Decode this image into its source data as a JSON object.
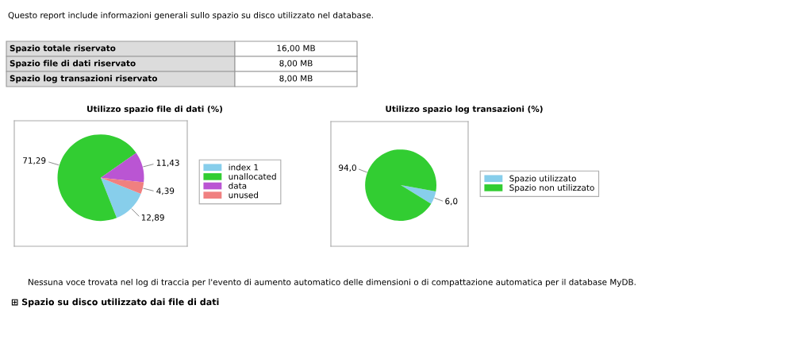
{
  "chart_data": [
    {
      "type": "other",
      "annotations": [
        "Questo report include informazioni generali sullo spazio su disco utilizzato nel database.",
        "Spazio totale riservato",
        "16,00 MB",
        "Spazio file di dati riservato",
        "8,00 MB",
        "Spazio log transazioni riservato",
        "8,00 MB",
        "Nessuna voce trovata nel log di traccia per l'evento di aumento automatico delle dimensioni o di compattazione automatica per il database MyDB.",
        "⊞ Spazio su disco utilizzato dai file di dati"
      ]
    },
    {
      "type": "pie",
      "title": "Utilizzo spazio file di dati (%)",
      "categories": [
        "index 1",
        "unallocated",
        "data",
        "unused"
      ],
      "values": [
        12.89,
        71.29,
        11.43,
        4.39
      ],
      "colors": [
        "#87ceeb",
        "#32cd32",
        "#ba55d3",
        "#f08080"
      ],
      "value_labels": [
        "12,89",
        "71,29",
        "11,43",
        "4,39"
      ],
      "legend": "right"
    },
    {
      "type": "pie",
      "title": "Utilizzo spazio log transazioni (%)",
      "categories": [
        "Spazio utilizzato",
        "Spazio non utilizzato"
      ],
      "values": [
        6.0,
        94.0
      ],
      "colors": [
        "#87ceeb",
        "#32cd32"
      ],
      "value_labels": [
        "6,0",
        "94,0"
      ],
      "legend": "right"
    }
  ]
}
